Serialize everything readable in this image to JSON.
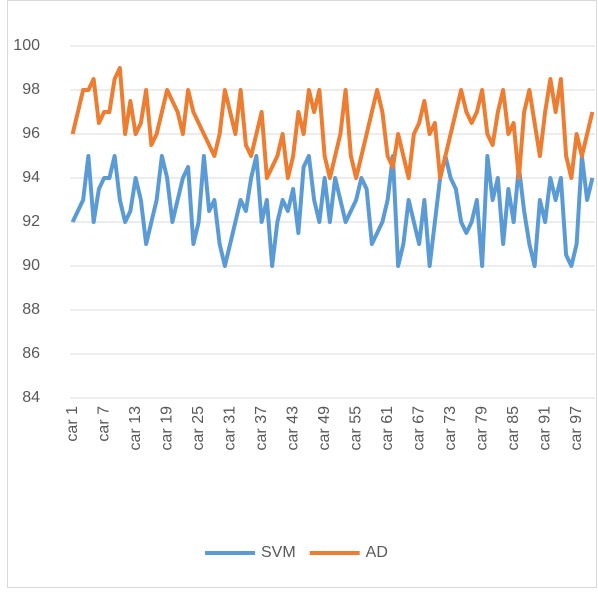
{
  "chart_data": {
    "type": "line",
    "categories": [
      "car 1",
      null,
      null,
      null,
      null,
      null,
      "car 7",
      null,
      null,
      null,
      null,
      null,
      "car 13",
      null,
      null,
      null,
      null,
      null,
      "car 19",
      null,
      null,
      null,
      null,
      null,
      "car 25",
      null,
      null,
      null,
      null,
      null,
      "car 31",
      null,
      null,
      null,
      null,
      null,
      "car 37",
      null,
      null,
      null,
      null,
      null,
      "car 43",
      null,
      null,
      null,
      null,
      null,
      "car 49",
      null,
      null,
      null,
      null,
      null,
      "car 55",
      null,
      null,
      null,
      null,
      null,
      "car 61",
      null,
      null,
      null,
      null,
      null,
      "car 67",
      null,
      null,
      null,
      null,
      null,
      "car 73",
      null,
      null,
      null,
      null,
      null,
      "car 79",
      null,
      null,
      null,
      null,
      null,
      "car 85",
      null,
      null,
      null,
      null,
      null,
      "car 91",
      null,
      null,
      null,
      null,
      null,
      "car 97",
      null,
      null,
      null
    ],
    "series": [
      {
        "name": "SVM",
        "color": "#5b9bd5",
        "values": [
          92,
          92.5,
          93,
          95,
          92,
          93.5,
          94,
          94,
          95,
          93,
          92,
          92.5,
          94,
          93,
          91,
          92,
          93,
          95,
          94,
          92,
          93,
          94,
          94.5,
          91,
          92,
          95,
          92.5,
          93,
          91,
          90,
          91,
          92,
          93,
          92.5,
          94,
          95,
          92,
          93,
          90,
          92,
          93,
          92.5,
          93.5,
          91.5,
          94.5,
          95,
          93,
          92,
          94,
          92,
          94,
          93,
          92,
          92.5,
          93,
          94,
          93.5,
          91,
          91.5,
          92,
          93,
          95,
          90,
          91,
          93,
          92,
          91,
          93,
          90,
          92,
          94,
          95,
          94,
          93.5,
          92,
          91.5,
          92,
          93,
          90,
          95,
          93,
          94,
          91,
          93.5,
          92,
          94.5,
          92.5,
          91,
          90,
          93,
          92,
          94,
          93,
          94,
          90.5,
          90,
          91,
          95,
          93,
          94
        ]
      },
      {
        "name": "AD",
        "color": "#ed7d31",
        "values": [
          96,
          97,
          98,
          98,
          98.5,
          96.5,
          97,
          97,
          98.5,
          99,
          96,
          97.5,
          96,
          96.5,
          98,
          95.5,
          96,
          97,
          98,
          97.5,
          97,
          96,
          98,
          97,
          96.5,
          96,
          95.5,
          95,
          96,
          98,
          97,
          96,
          98,
          95.5,
          95,
          96,
          97,
          94,
          94.5,
          95,
          96,
          94,
          95,
          97,
          96,
          98,
          97,
          98,
          95,
          94,
          95,
          96,
          98,
          95,
          94,
          95,
          96,
          97,
          98,
          97,
          95,
          94.5,
          96,
          95,
          94,
          96,
          96.5,
          97.5,
          96,
          96.5,
          94,
          95,
          96,
          97,
          98,
          97,
          96.5,
          97,
          98,
          96,
          95.5,
          97,
          98,
          96,
          96.5,
          94,
          97,
          98,
          96.5,
          95,
          97,
          98.5,
          97,
          98.5,
          95,
          94,
          96,
          95,
          96,
          97
        ]
      }
    ],
    "ylim": [
      84,
      100
    ],
    "yticks": [
      84,
      86,
      88,
      90,
      92,
      94,
      96,
      98,
      100
    ],
    "grid": true,
    "legend": "bottom"
  }
}
